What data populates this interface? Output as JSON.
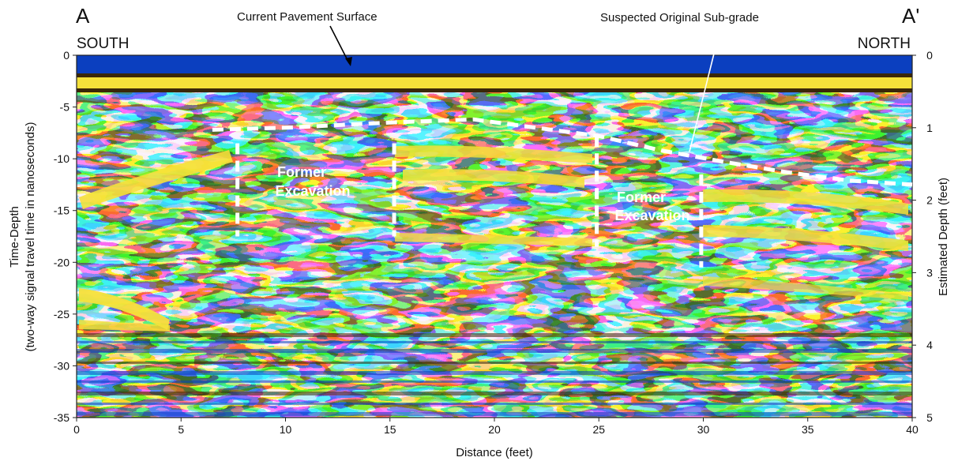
{
  "chart_data": {
    "type": "heatmap",
    "title": "",
    "xlabel": "Distance (feet)",
    "ylabel_line1": "Time-Depth",
    "ylabel_line2": "(two-way signal travel time in nanoseconds)",
    "y2label": "Estimated Depth (feet)",
    "xlim": [
      0,
      40
    ],
    "ylim": [
      -35,
      0
    ],
    "y2lim": [
      0,
      5
    ],
    "x_ticks": [
      0,
      5,
      10,
      15,
      20,
      25,
      30,
      35,
      40
    ],
    "y_ticks": [
      0,
      -5,
      -10,
      -15,
      -20,
      -25,
      -30,
      -35
    ],
    "y2_ticks": [
      0,
      1,
      2,
      3,
      4,
      5
    ],
    "end_labels": {
      "left": "A",
      "right": "A'"
    },
    "direction_labels": {
      "left": "SOUTH",
      "right": "NORTH"
    },
    "annotations": {
      "pavement": "Current Pavement Surface",
      "subgrade": "Suspected Original Sub-grade",
      "excavation_1_line1": "Former",
      "excavation_1_line2": "Excavation",
      "excavation_2_line1": "Former",
      "excavation_2_line2": "Excavation"
    },
    "subgrade_line": {
      "x": [
        6.5,
        10,
        15,
        19,
        22,
        25,
        28,
        31,
        34,
        37,
        40
      ],
      "y": [
        -7.2,
        -7.0,
        -6.5,
        -6.2,
        -7.0,
        -7.8,
        -9.2,
        -10.3,
        -11.3,
        -12.1,
        -12.5
      ]
    },
    "excavation_boundaries": [
      {
        "x": 7.7,
        "y_top": -8.5,
        "y_bottom": -17.5
      },
      {
        "x": 15.2,
        "y_top": -8.5,
        "y_bottom": -17.5
      },
      {
        "x": 24.9,
        "y_top": -7.8,
        "y_bottom": -18.5
      },
      {
        "x": 29.9,
        "y_top": -11.5,
        "y_bottom": -20.5
      }
    ],
    "colors": {
      "background_blue": "#1aa8e0",
      "deep_blue": "#0b3fbf",
      "light_cyan": "#7fe6ff",
      "yellow": "#f5e13a",
      "dark_brown": "#3a2708"
    }
  }
}
